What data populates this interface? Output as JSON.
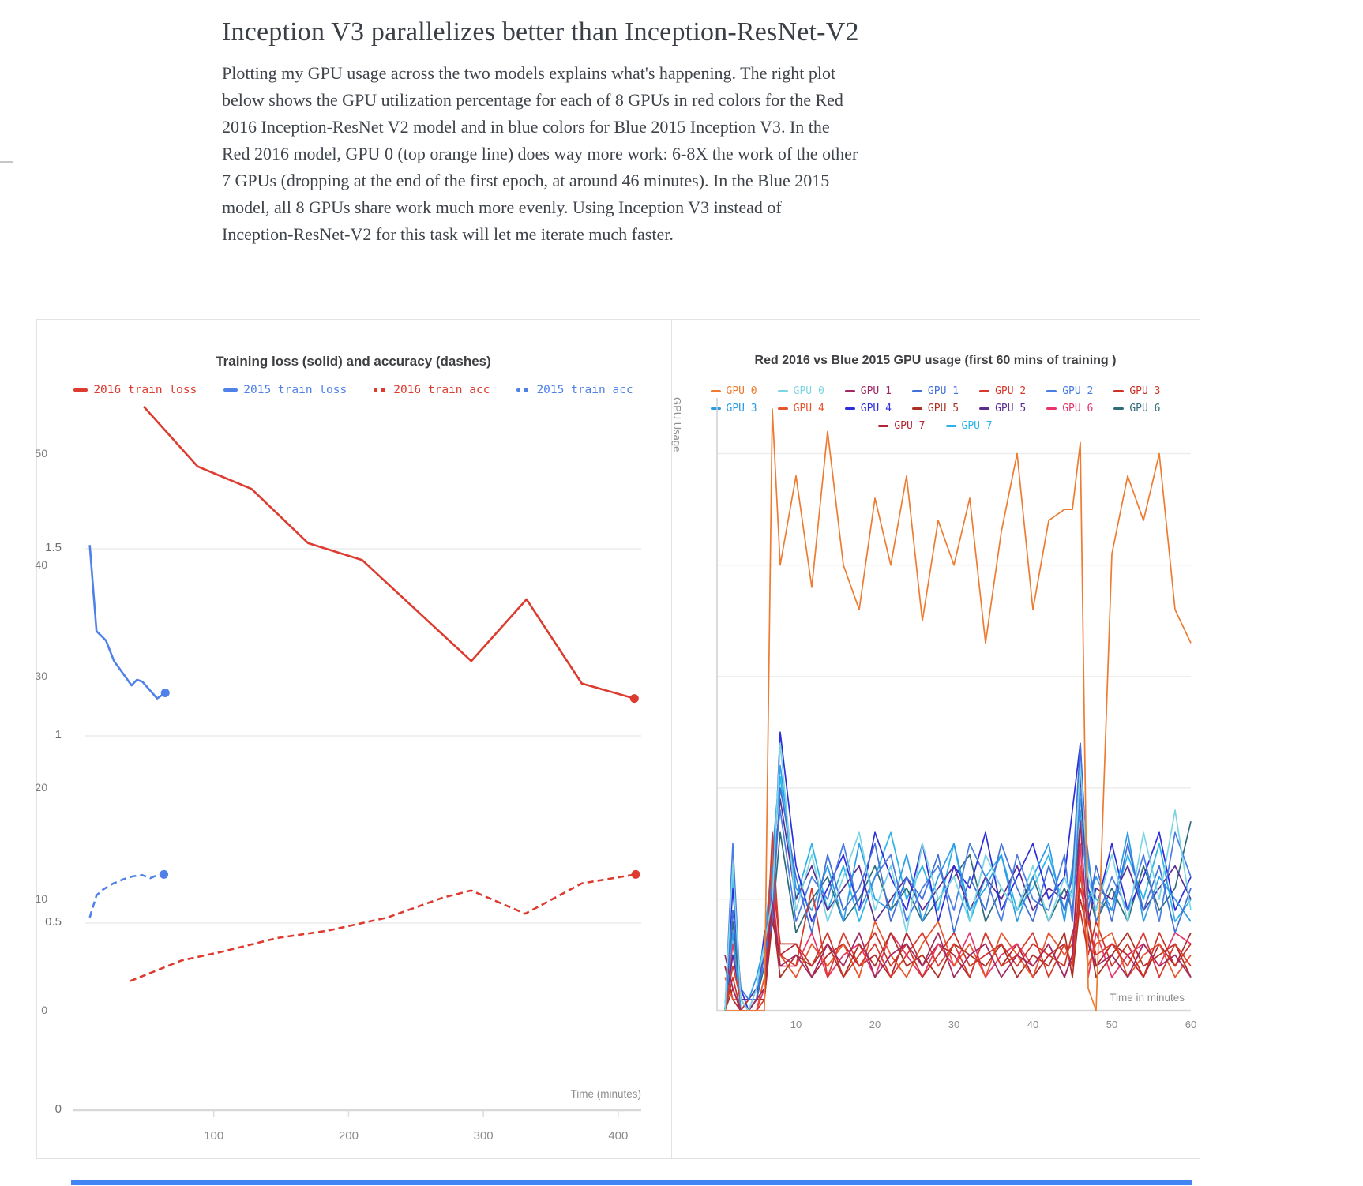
{
  "page": {
    "title": "Inception V3 parallelizes better than Inception-ResNet-V2",
    "paragraph_lines": [
      "Plotting my GPU usage across the two models explains what's happening. The right plot",
      "below shows the GPU utilization percentage for each of 8 GPUs in red colors for the Red",
      "2016 Inception-ResNet V2 model and in blue colors for Blue 2015 Inception V3. In the",
      "Red 2016 model, GPU 0 (top orange line) does way more work: 6-8X the work of the other",
      "7 GPUs (dropping at the end of the first epoch, at around 46 minutes). In the Blue 2015",
      "model, all 8 GPUs share work much more evenly. Using Inception V3 instead of",
      "Inception-ResNet-V2 for this task will let me iterate much faster."
    ]
  },
  "chart_data": [
    {
      "type": "line",
      "title": "Training loss (solid) and accuracy (dashes)",
      "xlabel": "Time (minutes)",
      "ylabel": "",
      "xlim": [
        0,
        420
      ],
      "ylim": [
        0,
        2.038
      ],
      "xticks": [
        100,
        200,
        300,
        400
      ],
      "yticks": [
        0,
        0.5,
        1,
        1.5
      ],
      "grid": "horizontal",
      "legend_position": "top",
      "series": [
        {
          "name": "2016 train loss",
          "color": "#dd3b2f",
          "dash": false,
          "end_dot": true,
          "x": [
            48,
            88,
            128,
            170,
            210,
            291,
            332,
            373,
            412
          ],
          "y": [
            1.88,
            1.72,
            1.66,
            1.515,
            1.47,
            1.2,
            1.365,
            1.14,
            1.1
          ]
        },
        {
          "name": "2015 train loss",
          "color": "#4f81e8",
          "dash": false,
          "end_dot": true,
          "x": [
            8,
            13,
            20,
            26,
            34,
            39,
            43,
            47,
            58,
            64
          ],
          "y": [
            1.51,
            1.28,
            1.255,
            1.2,
            1.16,
            1.135,
            1.15,
            1.145,
            1.1,
            1.115
          ]
        },
        {
          "name": "2016 train acc",
          "color": "#dd3b2f",
          "dash": true,
          "end_dot": true,
          "x": [
            38,
            76,
            108,
            147,
            185,
            229,
            270,
            291,
            331,
            373,
            413
          ],
          "y": [
            0.345,
            0.4,
            0.425,
            0.46,
            0.48,
            0.515,
            0.568,
            0.587,
            0.525,
            0.606,
            0.63
          ]
        },
        {
          "name": "2015 train acc",
          "color": "#4f81e8",
          "dash": true,
          "end_dot": true,
          "x": [
            8,
            13,
            18,
            25,
            33,
            40,
            47,
            53,
            58,
            63
          ],
          "y": [
            0.515,
            0.574,
            0.59,
            0.605,
            0.617,
            0.625,
            0.628,
            0.62,
            0.628,
            0.63
          ]
        }
      ],
      "legend_rows": [
        [
          0,
          1,
          2,
          3
        ]
      ]
    },
    {
      "type": "line",
      "title": "Red 2016 vs Blue 2015 GPU usage (first 60 mins of training )",
      "xlabel": "Time in minutes",
      "ylabel": "GPU Usage",
      "xlim": [
        0,
        60
      ],
      "ylim": [
        0,
        55
      ],
      "xticks": [
        10,
        20,
        30,
        40,
        50,
        60
      ],
      "yticks": [
        0,
        10,
        20,
        30,
        40,
        50
      ],
      "grid": "horizontal",
      "legend_position": "top",
      "x": [
        1,
        2,
        3,
        4,
        5,
        6,
        7,
        8,
        10,
        12,
        14,
        16,
        18,
        20,
        22,
        24,
        26,
        28,
        30,
        32,
        34,
        36,
        38,
        40,
        42,
        44,
        45,
        46,
        47,
        48,
        50,
        52,
        54,
        56,
        58,
        60
      ],
      "series": [
        {
          "name": "GPU 0",
          "model": "Red 2016",
          "color": "#ee7b30",
          "dash": false,
          "y": [
            0,
            0,
            0,
            0,
            0,
            0,
            54,
            40,
            48,
            38,
            52,
            40,
            36,
            46,
            40,
            48,
            35,
            44,
            40,
            46,
            33,
            43,
            50,
            36,
            44,
            45,
            45,
            51,
            2,
            0,
            41,
            48,
            44,
            50,
            36,
            33
          ]
        },
        {
          "name": "GPU 0",
          "model": "Blue 2015",
          "color": "#7cd5e2",
          "dash": false,
          "y": [
            0,
            13,
            1,
            0,
            2,
            6,
            10,
            24,
            9,
            14,
            8,
            12,
            16,
            9,
            13,
            7,
            15,
            10,
            12,
            8,
            14,
            11,
            9,
            13,
            8,
            12,
            10,
            22,
            12,
            9,
            14,
            8,
            16,
            10,
            18,
            9
          ]
        },
        {
          "name": "GPU 1",
          "model": "Red 2016",
          "color": "#a02963",
          "dash": false,
          "y": [
            5,
            2,
            0,
            0,
            1,
            2,
            10,
            4,
            5,
            3,
            6,
            4,
            7,
            3,
            5,
            6,
            4,
            7,
            3,
            5,
            6,
            3,
            5,
            4,
            6,
            3,
            5,
            17,
            6,
            4,
            5,
            3,
            6,
            4,
            5,
            3
          ]
        },
        {
          "name": "GPU 1",
          "model": "Blue 2015",
          "color": "#4170d8",
          "dash": false,
          "y": [
            0,
            9,
            2,
            1,
            1,
            5,
            8,
            20,
            12,
            7,
            14,
            9,
            11,
            15,
            8,
            12,
            10,
            14,
            7,
            12,
            9,
            15,
            11,
            8,
            13,
            9,
            12,
            24,
            9,
            13,
            8,
            15,
            9,
            13,
            7,
            11
          ]
        },
        {
          "name": "GPU 2",
          "model": "Red 2016",
          "color": "#d8392c",
          "dash": false,
          "y": [
            0,
            4,
            1,
            0,
            0,
            1,
            16,
            5,
            4,
            11,
            3,
            7,
            4,
            6,
            3,
            5,
            7,
            4,
            6,
            3,
            7,
            4,
            5,
            7,
            3,
            6,
            4,
            11,
            8,
            5,
            6,
            4,
            7,
            3,
            6,
            4
          ]
        },
        {
          "name": "GPU 2",
          "model": "Blue 2015",
          "color": "#4a7de2",
          "dash": false,
          "y": [
            0,
            15,
            1,
            0,
            2,
            4,
            12,
            18,
            8,
            12,
            10,
            15,
            9,
            12,
            14,
            8,
            11,
            13,
            9,
            15,
            12,
            8,
            14,
            10,
            9,
            14,
            8,
            20,
            14,
            8,
            12,
            9,
            14,
            8,
            16,
            12
          ]
        },
        {
          "name": "GPU 3",
          "model": "Red 2016",
          "color": "#cc3226",
          "dash": false,
          "y": [
            0,
            3,
            0,
            1,
            1,
            2,
            12,
            6,
            6,
            4,
            7,
            3,
            5,
            7,
            4,
            6,
            3,
            5,
            7,
            4,
            5,
            6,
            4,
            6,
            5,
            4,
            7,
            9,
            5,
            8,
            4,
            6,
            3,
            7,
            4,
            6
          ]
        },
        {
          "name": "GPU 3",
          "model": "Blue 2015",
          "color": "#2d9ce8",
          "dash": false,
          "y": [
            0,
            7,
            0,
            1,
            3,
            6,
            14,
            22,
            11,
            9,
            13,
            8,
            15,
            10,
            9,
            14,
            8,
            12,
            15,
            9,
            11,
            14,
            8,
            12,
            15,
            8,
            13,
            18,
            10,
            12,
            9,
            16,
            8,
            12,
            10,
            8
          ]
        },
        {
          "name": "GPU 4",
          "model": "Red 2016",
          "color": "#e8542b",
          "dash": false,
          "y": [
            3,
            1,
            1,
            0,
            0,
            3,
            14,
            5,
            3,
            6,
            4,
            6,
            3,
            8,
            5,
            3,
            6,
            8,
            4,
            6,
            3,
            7,
            5,
            3,
            7,
            5,
            6,
            13,
            4,
            6,
            7,
            3,
            5,
            6,
            3,
            5
          ]
        },
        {
          "name": "GPU 4",
          "model": "Blue 2015",
          "color": "#2d2ddb",
          "dash": false,
          "y": [
            0,
            11,
            2,
            0,
            1,
            7,
            9,
            25,
            13,
            8,
            11,
            14,
            9,
            16,
            12,
            9,
            15,
            8,
            13,
            11,
            16,
            9,
            12,
            15,
            10,
            12,
            18,
            24,
            11,
            9,
            15,
            9,
            12,
            16,
            9,
            12
          ]
        },
        {
          "name": "GPU 5",
          "model": "Red 2016",
          "color": "#ad2f23",
          "dash": false,
          "y": [
            0,
            2,
            0,
            0,
            1,
            1,
            9,
            3,
            5,
            4,
            6,
            3,
            6,
            4,
            7,
            4,
            5,
            3,
            6,
            5,
            4,
            6,
            3,
            5,
            4,
            7,
            3,
            10,
            7,
            3,
            5,
            7,
            4,
            5,
            6,
            3
          ]
        },
        {
          "name": "GPU 5",
          "model": "Blue 2015",
          "color": "#5c2d91",
          "dash": false,
          "y": [
            0,
            5,
            1,
            1,
            2,
            5,
            11,
            19,
            10,
            13,
            9,
            11,
            13,
            8,
            10,
            12,
            9,
            11,
            13,
            9,
            12,
            10,
            13,
            9,
            11,
            10,
            12,
            21,
            8,
            11,
            10,
            13,
            9,
            11,
            13,
            10
          ]
        },
        {
          "name": "GPU 6",
          "model": "Red 2016",
          "color": "#e73569",
          "dash": false,
          "y": [
            0,
            6,
            1,
            0,
            0,
            2,
            11,
            4,
            4,
            7,
            3,
            5,
            6,
            3,
            7,
            5,
            3,
            6,
            4,
            7,
            3,
            5,
            6,
            4,
            6,
            3,
            5,
            15,
            3,
            7,
            3,
            5,
            6,
            4,
            7,
            6
          ]
        },
        {
          "name": "GPU 6",
          "model": "Blue 2015",
          "color": "#2f6d7a",
          "dash": false,
          "y": [
            0,
            8,
            1,
            0,
            1,
            4,
            8,
            16,
            7,
            10,
            12,
            8,
            10,
            13,
            9,
            11,
            8,
            10,
            12,
            14,
            8,
            11,
            9,
            12,
            8,
            11,
            9,
            17,
            11,
            8,
            11,
            8,
            13,
            9,
            11,
            17
          ]
        },
        {
          "name": "GPU 7",
          "model": "Red 2016",
          "color": "#b02531",
          "dash": false,
          "y": [
            4,
            1,
            0,
            0,
            1,
            1,
            8,
            5,
            6,
            3,
            5,
            6,
            4,
            5,
            3,
            7,
            4,
            6,
            5,
            3,
            7,
            4,
            6,
            3,
            5,
            6,
            4,
            12,
            9,
            4,
            6,
            5,
            3,
            6,
            4,
            7
          ]
        },
        {
          "name": "GPU 7",
          "model": "Blue 2015",
          "color": "#2ab3e8",
          "dash": false,
          "y": [
            0,
            12,
            0,
            1,
            2,
            6,
            13,
            21,
            10,
            15,
            9,
            13,
            8,
            12,
            16,
            10,
            13,
            9,
            15,
            8,
            12,
            14,
            9,
            11,
            14,
            9,
            11,
            19,
            13,
            10,
            9,
            14,
            10,
            15,
            8,
            10
          ]
        }
      ],
      "legend_rows": [
        [
          0,
          1,
          2,
          3,
          4,
          5,
          6
        ],
        [
          7,
          8,
          9,
          10,
          11,
          12,
          13
        ],
        [
          14,
          15
        ]
      ]
    }
  ]
}
